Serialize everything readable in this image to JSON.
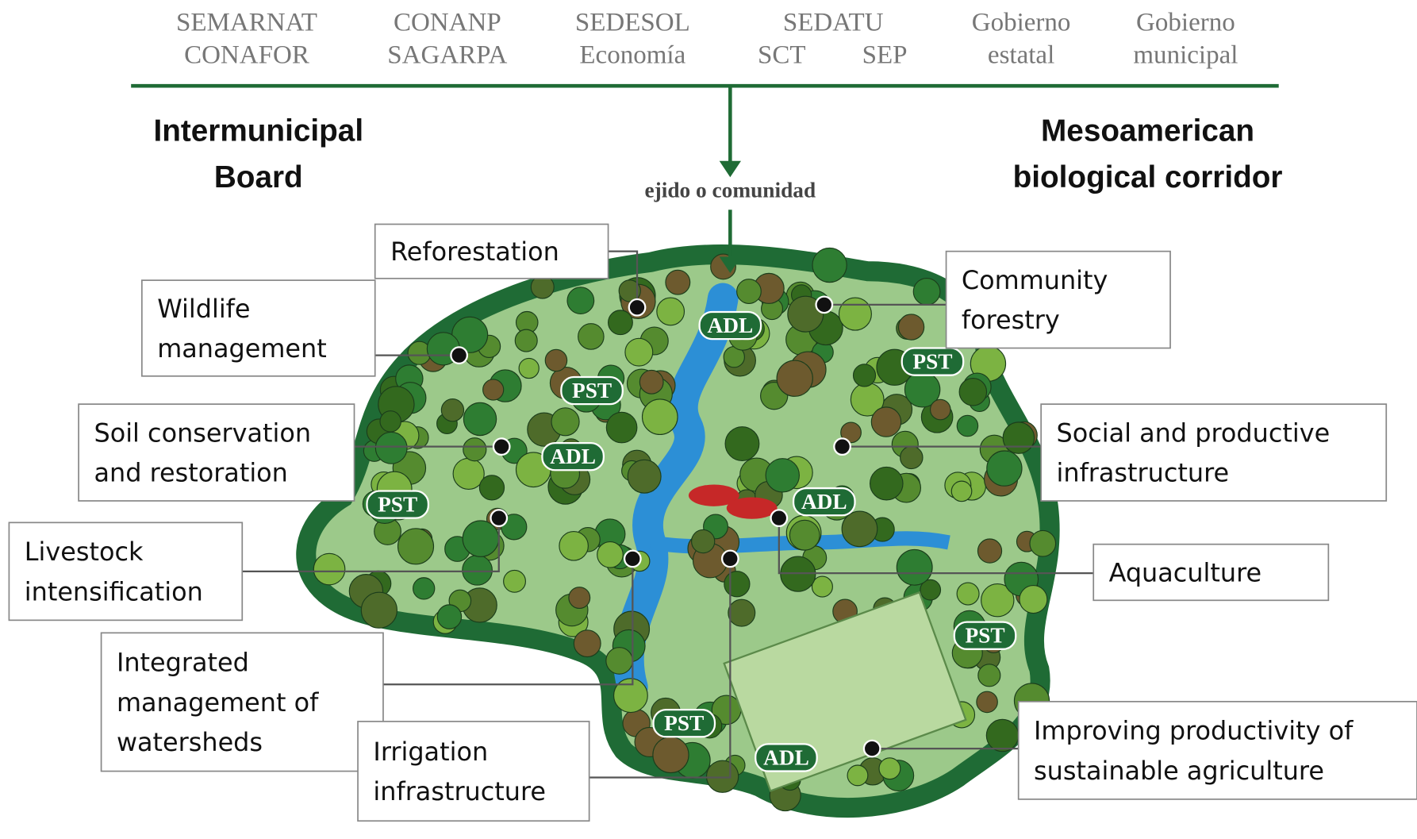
{
  "agencies": [
    [
      "SEMARNAT",
      "CONAFOR"
    ],
    [
      "CONANP",
      "SAGARPA"
    ],
    [
      "SEDESOL",
      "Economía"
    ],
    [
      "SEDATU",
      "SCT",
      "SEP"
    ],
    [
      "Gobierno",
      "estatal"
    ],
    [
      "Gobierno",
      "municipal"
    ]
  ],
  "headings": {
    "left": [
      "Intermunicipal",
      "Board"
    ],
    "right": [
      "Mesoamerican",
      "biological corridor"
    ]
  },
  "community": "ejido o comunidad",
  "labels": [
    {
      "lines": [
        "Reforestation"
      ]
    },
    {
      "lines": [
        "Wildlife",
        "management"
      ]
    },
    {
      "lines": [
        "Community",
        "forestry"
      ]
    },
    {
      "lines": [
        "Soil conservation",
        "and restoration"
      ]
    },
    {
      "lines": [
        "Social and productive",
        "infrastructure"
      ]
    },
    {
      "lines": [
        "Livestock",
        "intensification"
      ]
    },
    {
      "lines": [
        "Aquaculture"
      ]
    },
    {
      "lines": [
        "Integrated",
        "management of",
        "watersheds"
      ]
    },
    {
      "lines": [
        "Irrigation",
        "infrastructure"
      ]
    },
    {
      "lines": [
        "Improving productivity of",
        "sustainable agriculture"
      ]
    }
  ],
  "badges": [
    "ADL",
    "ADL",
    "ADL",
    "ADL",
    "PST",
    "PST",
    "PST",
    "PST",
    "PST"
  ]
}
